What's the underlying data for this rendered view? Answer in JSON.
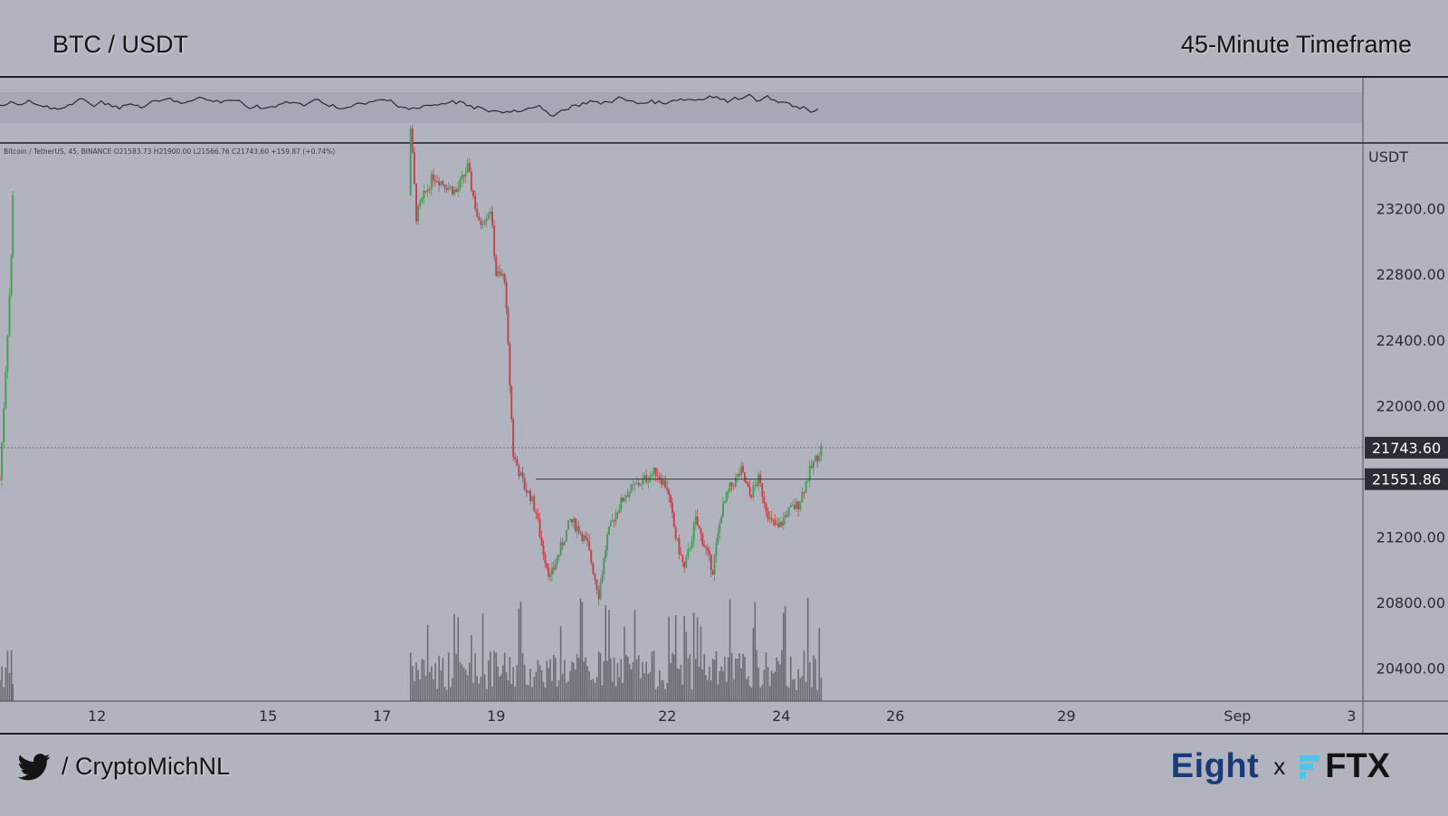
{
  "header": {
    "title_left": "BTC / USDT",
    "title_right": "45-Minute Timeframe"
  },
  "footer": {
    "twitter_handle": "/ CryptoMichNL",
    "brand_left": "Eight",
    "brand_sep": "x",
    "brand_right": "FTX"
  },
  "legend_line": "Bitcoin / TetherUS, 45, BINANCE  O21583.73  H21900.00  L21566.76  C21743.60  +159.87 (+0.74%)",
  "colors": {
    "background": "#b1b4bf",
    "up": "#4e9a5c",
    "down": "#c2454f",
    "volume": "#54545c",
    "label_bg": "#2a2c36",
    "rsi_line": "#2a2a30"
  },
  "chart_data": {
    "type": "line",
    "title": "BTC / USDT",
    "subtitle": "45-Minute Timeframe",
    "ylabel": "USDT",
    "ylim": [
      20200,
      23600
    ],
    "y_ticks": [
      23200,
      22800,
      22400,
      22000,
      21200,
      20800,
      20400
    ],
    "y_tick_labels": [
      "23200.00",
      "22800.00",
      "22400.00",
      "22000.00",
      "21200.00",
      "20800.00",
      "20400.00"
    ],
    "x_ticks": [
      {
        "label": "12",
        "day": 12
      },
      {
        "label": "15",
        "day": 15
      },
      {
        "label": "17",
        "day": 17
      },
      {
        "label": "19",
        "day": 19
      },
      {
        "label": "22",
        "day": 22
      },
      {
        "label": "24",
        "day": 24
      },
      {
        "label": "26",
        "day": 26
      },
      {
        "label": "29",
        "day": 29
      },
      {
        "label": "Sep",
        "day": 32
      },
      {
        "label": "3",
        "day": 34
      }
    ],
    "x_range_days": [
      10.3,
      34.2
    ],
    "price_labels": [
      {
        "value": 21743.6,
        "text": "21743.60",
        "style": "current"
      },
      {
        "value": 21551.86,
        "text": "21551.86",
        "style": "level"
      }
    ],
    "horizontal_level": {
      "value": 21551.86,
      "from_day": 19.7
    },
    "series": [
      {
        "name": "BTC/USDT",
        "x_days": [
          10.3,
          10.5,
          10.55,
          17.5,
          17.6,
          17.7,
          17.9,
          18.1,
          18.3,
          18.5,
          18.7,
          18.9,
          19.0,
          19.15,
          19.3,
          19.4,
          19.5,
          19.6,
          19.7,
          19.8,
          19.95,
          20.1,
          20.3,
          20.45,
          20.6,
          20.8,
          20.95,
          21.1,
          21.25,
          21.4,
          21.6,
          21.8,
          22.0,
          22.15,
          22.3,
          22.5,
          22.65,
          22.8,
          22.95,
          23.1,
          23.3,
          23.45,
          23.6,
          23.8,
          23.95,
          24.1,
          24.3,
          24.5,
          24.7
        ],
        "close": [
          21550,
          22900,
          23700,
          23700,
          23150,
          23250,
          23400,
          23350,
          23300,
          23450,
          23100,
          23200,
          22800,
          22780,
          21700,
          21600,
          21500,
          21450,
          21350,
          21150,
          20950,
          21100,
          21300,
          21250,
          21150,
          20850,
          21200,
          21350,
          21450,
          21500,
          21550,
          21600,
          21500,
          21200,
          21000,
          21300,
          21150,
          21000,
          21350,
          21500,
          21600,
          21450,
          21550,
          21300,
          21250,
          21350,
          21400,
          21600,
          21743.6
        ]
      }
    ],
    "annotations": []
  }
}
